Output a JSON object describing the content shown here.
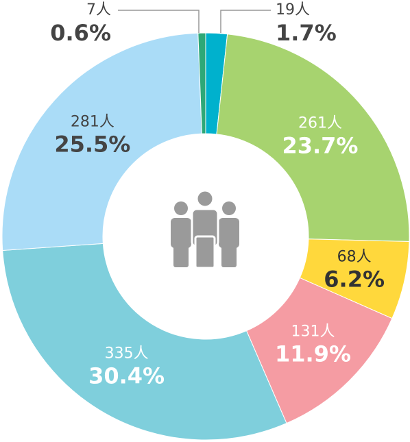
{
  "chart_data": {
    "type": "donut",
    "categories": [
      "19人",
      "261人",
      "68人",
      "131人",
      "335人",
      "281人",
      "7人"
    ],
    "values": [
      1.7,
      23.7,
      6.2,
      11.9,
      30.4,
      25.5,
      0.6
    ],
    "value_labels": [
      "1.7%",
      "23.7%",
      "6.2%",
      "11.9%",
      "30.4%",
      "25.5%",
      "0.6%"
    ],
    "colors": [
      "#00b1cd",
      "#a7d36f",
      "#ffd83c",
      "#f59ca3",
      "#7fcfdc",
      "#aadcf7",
      "#2ea877"
    ]
  }
}
